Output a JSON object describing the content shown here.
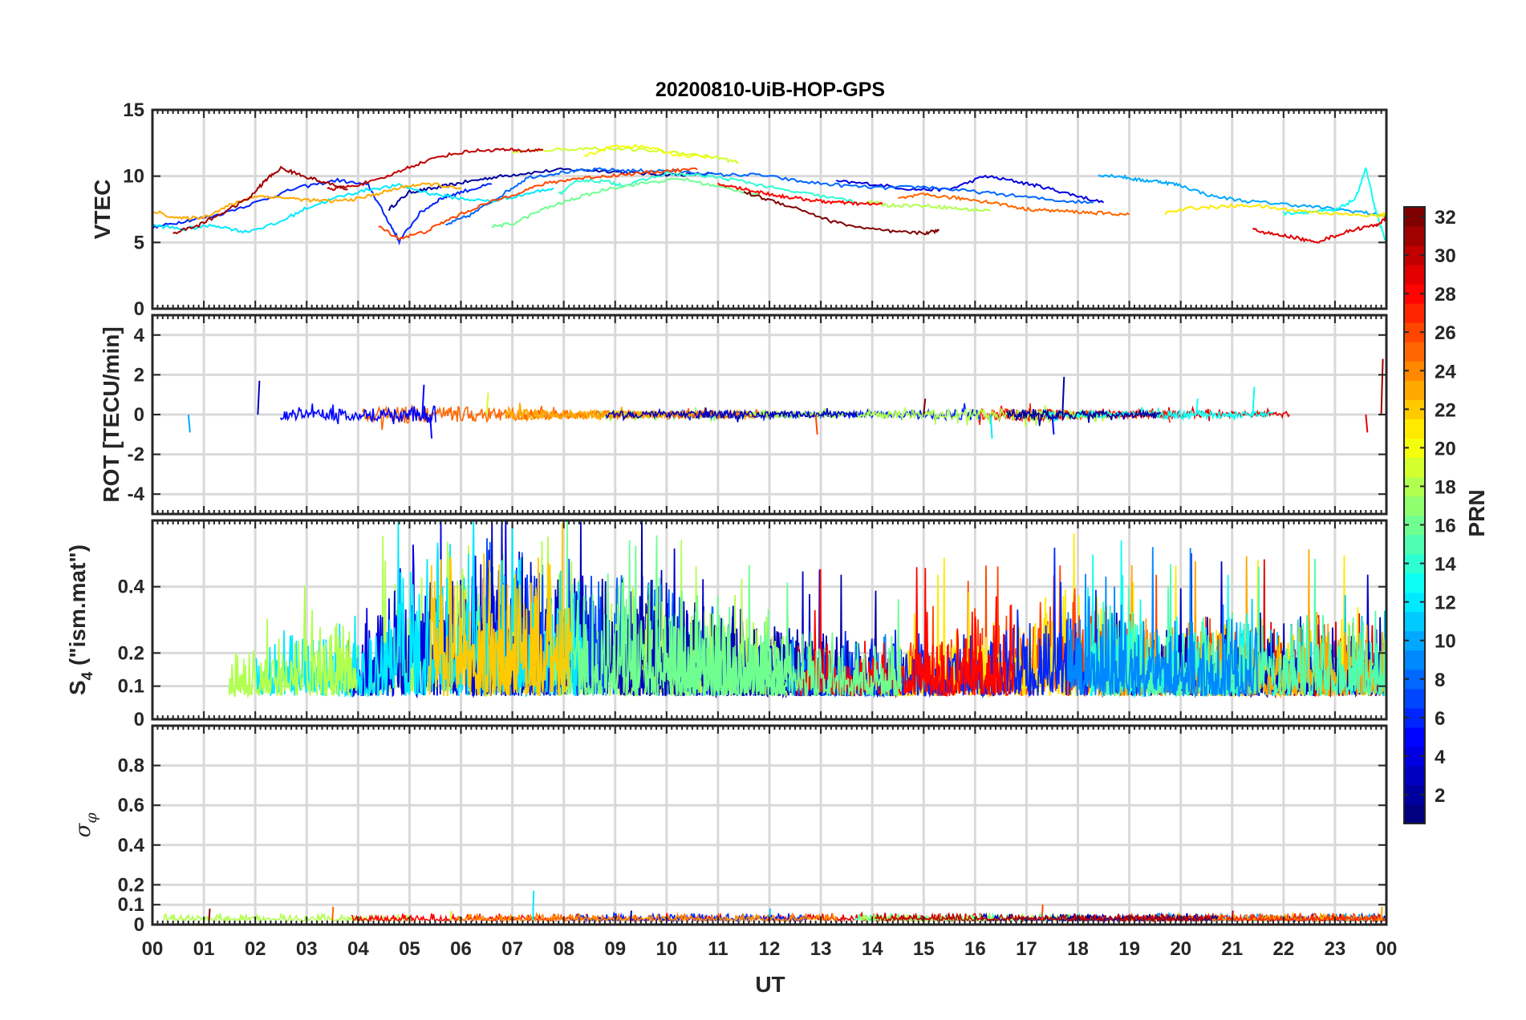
{
  "chart_data": {
    "type": "line",
    "title": "20200810-UiB-HOP-GPS",
    "xlabel": "UT",
    "x_unit": "hours UT",
    "xlim": [
      0,
      24
    ],
    "x_tick_labels": [
      "00",
      "01",
      "02",
      "03",
      "04",
      "05",
      "06",
      "07",
      "08",
      "09",
      "10",
      "11",
      "12",
      "13",
      "14",
      "15",
      "16",
      "17",
      "18",
      "19",
      "20",
      "21",
      "22",
      "23",
      "00"
    ],
    "grid": true,
    "series_color_by": "PRN",
    "colorbar": {
      "label": "PRN",
      "range": [
        1,
        32
      ],
      "ticks": [
        "2",
        "4",
        "6",
        "8",
        "10",
        "12",
        "14",
        "16",
        "18",
        "20",
        "22",
        "24",
        "26",
        "28",
        "30",
        "32"
      ],
      "colormap": "jet",
      "placement": "right"
    },
    "panels": [
      {
        "name": "vtec",
        "ylabel": "VTEC",
        "ylim": [
          0,
          15
        ],
        "yticks": [
          0,
          5,
          10,
          15
        ],
        "ytick_labels": [
          "0",
          "5",
          "10",
          "15"
        ],
        "series": [
          {
            "prn": 2,
            "x": [
              4.6,
              5.0,
              5.5,
              6.0,
              6.6,
              7.2,
              8.0,
              8.8,
              9.5,
              10.2,
              10.9
            ],
            "y": [
              7.5,
              8.8,
              9.1,
              9.5,
              9.9,
              10.2,
              10.5,
              10.4,
              10.2,
              10.1,
              10.2
            ]
          },
          {
            "prn": 4,
            "x": [
              13.3,
              14.0,
              14.8,
              15.5,
              16.2,
              16.8,
              17.3,
              17.9,
              18.5
            ],
            "y": [
              9.6,
              9.4,
              9.0,
              9.0,
              10.0,
              9.6,
              9.2,
              8.6,
              8.0
            ]
          },
          {
            "prn": 6,
            "x": [
              0.0,
              0.6,
              1.2,
              2.0,
              2.8,
              3.6,
              4.2,
              4.6,
              4.8,
              5.2,
              5.6,
              6.0,
              6.6
            ],
            "y": [
              6.1,
              6.6,
              7.0,
              8.0,
              9.1,
              9.7,
              9.3,
              6.5,
              5.1,
              7.2,
              8.3,
              8.8,
              9.4
            ]
          },
          {
            "prn": 8,
            "x": [
              5.7,
              6.2,
              6.8,
              7.3,
              8.0,
              8.7,
              9.4,
              10.1,
              11.0,
              11.8,
              12.6,
              13.4,
              14.2,
              15.0,
              15.8,
              16.6,
              17.5,
              18.3
            ],
            "y": [
              6.3,
              7.1,
              8.6,
              9.9,
              10.3,
              10.5,
              10.4,
              10.4,
              10.1,
              10.1,
              9.6,
              9.3,
              9.1,
              9.2,
              8.9,
              8.6,
              8.2,
              8.0
            ]
          },
          {
            "prn": 10,
            "x": [
              18.4,
              18.8,
              19.2,
              19.6,
              20.0,
              20.6,
              21.3,
              22.0,
              22.8,
              23.5,
              24.0
            ],
            "y": [
              10.1,
              10.0,
              9.7,
              9.6,
              9.3,
              8.5,
              8.1,
              7.9,
              7.6,
              7.3,
              7.0
            ]
          },
          {
            "prn": 12,
            "x": [
              0.0,
              0.6,
              1.2,
              1.8,
              2.4,
              3.0,
              3.6,
              4.2,
              4.8,
              5.4,
              6.0,
              6.6,
              7.2,
              7.8
            ],
            "y": [
              6.3,
              6.0,
              6.3,
              5.8,
              6.4,
              7.6,
              8.4,
              9.0,
              9.3,
              8.7,
              8.3,
              8.1,
              8.6,
              9.1
            ]
          },
          {
            "prn": 13,
            "x": [
              22.0,
              22.5,
              23.0,
              23.4,
              23.6,
              23.8,
              24.0
            ],
            "y": [
              7.2,
              7.3,
              7.4,
              8.3,
              10.6,
              7.2,
              5.0
            ]
          },
          {
            "prn": 14,
            "x": [
              7.9,
              8.3,
              8.8,
              9.2,
              10.0,
              10.8,
              11.5,
              12.2,
              13.0,
              13.8
            ],
            "y": [
              8.6,
              9.7,
              9.6,
              9.3,
              10.2,
              10.0,
              9.6,
              9.0,
              8.5,
              8.0
            ]
          },
          {
            "prn": 16,
            "x": [
              6.6,
              7.0,
              7.6,
              8.2,
              8.9,
              9.6,
              10.3,
              11.0,
              11.8
            ],
            "y": [
              6.2,
              6.4,
              7.5,
              8.3,
              9.1,
              9.5,
              9.8,
              9.2,
              8.6
            ]
          },
          {
            "prn": 18,
            "x": [
              13.9,
              14.3,
              14.8,
              15.3,
              15.8,
              16.3
            ],
            "y": [
              8.1,
              7.8,
              7.8,
              7.7,
              7.5,
              7.4
            ]
          },
          {
            "prn": 19,
            "x": [
              7.0,
              7.8,
              8.6,
              9.4,
              10.2,
              11.0,
              11.4
            ],
            "y": [
              11.8,
              12.0,
              12.1,
              12.0,
              11.8,
              11.4,
              11.0
            ]
          },
          {
            "prn": 20,
            "x": [
              8.4,
              9.0,
              9.6,
              10.2,
              10.9
            ],
            "y": [
              11.5,
              12.3,
              12.2,
              11.6,
              11.4
            ]
          },
          {
            "prn": 21,
            "x": [
              19.7,
              20.2,
              20.8,
              21.4,
              22.0,
              22.6,
              23.2,
              23.8,
              24.0
            ],
            "y": [
              7.2,
              7.6,
              7.7,
              7.8,
              7.5,
              7.3,
              7.1,
              7.0,
              7.1
            ]
          },
          {
            "prn": 23,
            "x": [
              0.0,
              0.5,
              1.0,
              1.5,
              2.0,
              2.5,
              3.0,
              3.5,
              4.0,
              4.5,
              5.0,
              5.5,
              6.0
            ],
            "y": [
              7.4,
              6.8,
              6.9,
              7.8,
              8.5,
              8.4,
              8.2,
              8.1,
              8.3,
              8.8,
              9.3,
              9.4,
              9.0
            ]
          },
          {
            "prn": 25,
            "x": [
              14.5,
              15.0,
              15.5,
              16.0,
              16.5,
              17.0,
              17.5,
              18.0,
              18.5,
              19.0
            ],
            "y": [
              8.3,
              8.6,
              8.4,
              8.2,
              7.9,
              7.5,
              7.4,
              7.3,
              7.2,
              7.1
            ]
          },
          {
            "prn": 26,
            "x": [
              4.4,
              4.8,
              5.3,
              5.8,
              6.4,
              7.0,
              7.6,
              8.2,
              8.8,
              9.4,
              10.0,
              10.6
            ],
            "y": [
              6.2,
              5.3,
              5.8,
              6.8,
              7.8,
              8.6,
              9.4,
              9.8,
              10.0,
              10.2,
              10.4,
              10.5
            ]
          },
          {
            "prn": 28,
            "x": [
              11.0,
              11.4,
              11.8,
              12.2,
              12.6,
              13.0,
              13.4,
              13.8,
              14.2
            ],
            "y": [
              9.4,
              9.1,
              8.8,
              8.5,
              8.3,
              8.1,
              8.0,
              7.9,
              7.9
            ]
          },
          {
            "prn": 29,
            "x": [
              21.4,
              21.8,
              22.2,
              22.6,
              23.0,
              23.4,
              23.8,
              24.0
            ],
            "y": [
              6.0,
              5.6,
              5.4,
              5.0,
              5.5,
              6.0,
              6.3,
              6.8
            ]
          },
          {
            "prn": 30,
            "x": [
              3.4,
              3.8,
              4.4,
              5.0,
              5.6,
              6.2,
              6.8,
              7.2,
              7.6
            ],
            "y": [
              9.0,
              9.2,
              9.7,
              10.7,
              11.5,
              11.9,
              12.0,
              11.9,
              12.0
            ]
          },
          {
            "prn": 31,
            "x": [
              0.4,
              0.9,
              1.4,
              1.9,
              2.2,
              2.5,
              2.8,
              3.2,
              3.8
            ],
            "y": [
              5.7,
              6.3,
              7.3,
              8.4,
              9.7,
              10.6,
              10.2,
              9.7,
              9.0
            ]
          },
          {
            "prn": 32,
            "x": [
              11.5,
              12.0,
              12.6,
              13.2,
              13.8,
              14.4,
              15.0,
              15.3
            ],
            "y": [
              8.8,
              8.2,
              7.5,
              6.6,
              6.1,
              5.8,
              5.7,
              5.9
            ]
          }
        ]
      },
      {
        "name": "rot",
        "ylabel": "ROT [TECU/min]",
        "ylim": [
          -5,
          5
        ],
        "yticks": [
          -4,
          -2,
          0,
          2,
          4
        ],
        "ytick_labels": [
          "-4",
          "-2",
          "0",
          "2",
          "4"
        ],
        "noise_amplitude_by_hour": [
          0.3,
          0.35,
          0.3,
          0.25,
          0.3,
          0.45,
          0.4,
          0.3,
          0.2,
          0.2,
          0.15,
          0.2,
          0.15,
          0.15,
          0.15,
          0.25,
          0.3,
          0.3,
          0.2,
          0.15,
          0.25,
          0.15,
          0.15,
          0.2,
          0.4
        ],
        "spikes": [
          {
            "x": 2.05,
            "y": 1.7
          },
          {
            "x": 5.25,
            "y": 1.5
          },
          {
            "x": 5.4,
            "y": -1.2
          },
          {
            "x": 6.5,
            "y": 1.1
          },
          {
            "x": 0.7,
            "y": -0.9
          },
          {
            "x": 16.3,
            "y": -1.2
          },
          {
            "x": 17.7,
            "y": 1.9
          },
          {
            "x": 17.5,
            "y": -1.0
          },
          {
            "x": 20.3,
            "y": 0.8
          },
          {
            "x": 21.4,
            "y": 1.4
          },
          {
            "x": 23.9,
            "y": 2.8
          },
          {
            "x": 23.6,
            "y": -0.9
          },
          {
            "x": 12.9,
            "y": -1.0
          },
          {
            "x": 15.0,
            "y": 0.8
          }
        ]
      },
      {
        "name": "s4",
        "ylabel": "S4 (\"ism.mat\")",
        "ylim": [
          0,
          0.6
        ],
        "yticks": [
          0,
          0.1,
          0.2,
          0.4
        ],
        "ytick_labels": [
          "0",
          "0.1",
          "0.2",
          "0.4"
        ],
        "baseline": 0.07,
        "activity_envelope_by_hour": [
          0.3,
          0.22,
          0.22,
          0.28,
          0.26,
          0.45,
          0.48,
          0.44,
          0.4,
          0.38,
          0.36,
          0.3,
          0.26,
          0.22,
          0.22,
          0.24,
          0.26,
          0.3,
          0.38,
          0.28,
          0.26,
          0.3,
          0.26,
          0.3,
          0.26
        ]
      },
      {
        "name": "sigma_phi",
        "ylabel": "σφ",
        "ylim": [
          0,
          1
        ],
        "yticks": [
          0,
          0.1,
          0.2,
          0.4,
          0.6,
          0.8
        ],
        "ytick_labels": [
          "0",
          "0.1",
          "0.2",
          "0.4",
          "0.6",
          "0.8"
        ],
        "baseline": 0.02,
        "spikes": [
          {
            "x": 7.4,
            "y": 0.17
          },
          {
            "x": 3.5,
            "y": 0.09
          },
          {
            "x": 1.1,
            "y": 0.08
          },
          {
            "x": 5.8,
            "y": 0.07
          },
          {
            "x": 9.3,
            "y": 0.07
          },
          {
            "x": 17.3,
            "y": 0.1
          },
          {
            "x": 12.0,
            "y": 0.08
          },
          {
            "x": 21.0,
            "y": 0.07
          },
          {
            "x": 23.9,
            "y": 0.09
          }
        ]
      }
    ]
  }
}
